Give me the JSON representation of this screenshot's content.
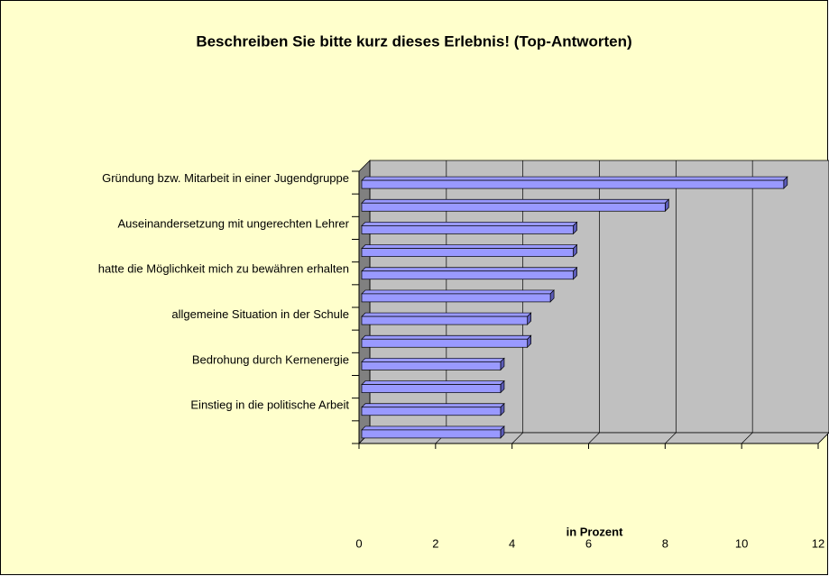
{
  "chart_data": {
    "type": "bar",
    "orientation": "horizontal",
    "title": "Beschreiben Sie bitte kurz dieses Erlebnis! (Top-Antworten)",
    "x_label": "in Prozent",
    "categories": [
      "Gründung bzw. Mitarbeit in einer Jugendgruppe",
      null,
      "Auseinandersetzung mit ungerechten Lehrer",
      null,
      "hatte die Möglichkeit mich zu bewähren erhalten",
      null,
      "allgemeine Situation in der Schule",
      null,
      "Bedrohung durch Kernenergie",
      null,
      "Einstieg in die politische Arbeit",
      null
    ],
    "values": [
      11.1,
      8.0,
      5.6,
      5.6,
      5.6,
      5.0,
      4.4,
      4.4,
      3.7,
      3.7,
      3.7,
      3.7
    ],
    "color": "#9999ff",
    "xlim": [
      0,
      12
    ],
    "xticks": [
      0,
      2,
      4,
      6,
      8,
      10,
      12
    ],
    "grid": true
  }
}
